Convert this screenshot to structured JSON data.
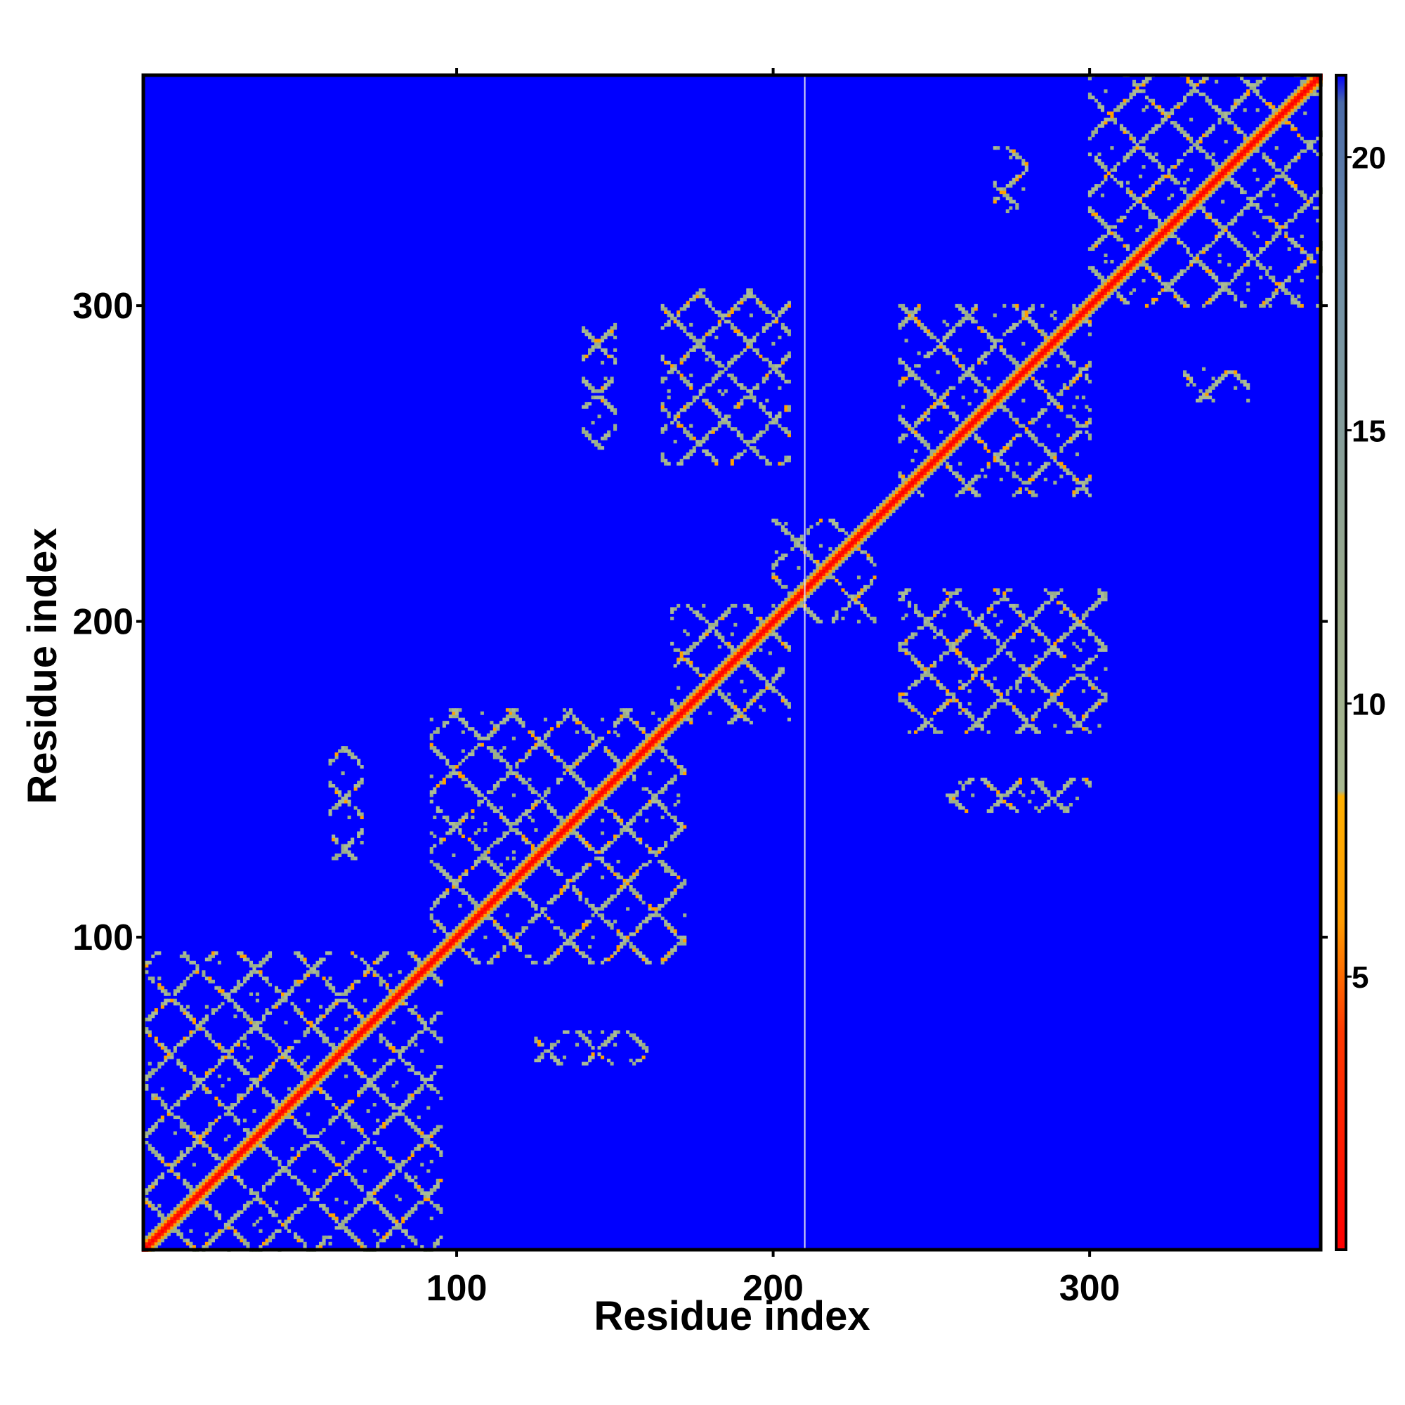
{
  "chart_data": {
    "type": "heatmap",
    "title": "",
    "xlabel": "Residue index",
    "ylabel": "Residue index",
    "xlim": [
      1,
      373
    ],
    "ylim": [
      1,
      373
    ],
    "x_ticks": [
      100,
      200,
      300
    ],
    "y_ticks": [
      100,
      200,
      300
    ],
    "colorbar": {
      "range": [
        0,
        21.5
      ],
      "ticks": [
        5,
        10,
        15,
        20
      ],
      "colors": [
        {
          "value": 0,
          "color": "#ff0000"
        },
        {
          "value": 4,
          "color": "#ff3a00"
        },
        {
          "value": 6,
          "color": "#ff9b00"
        },
        {
          "value": 8.3,
          "color": "#ffb000"
        },
        {
          "value": 8.4,
          "color": "#a8b890"
        },
        {
          "value": 12,
          "color": "#9aaa8c"
        },
        {
          "value": 18,
          "color": "#6f8fa8"
        },
        {
          "value": 21,
          "color": "#4a6aa8"
        },
        {
          "value": 21.5,
          "color": "#0000ff"
        }
      ]
    },
    "background_color": "#0000ff",
    "diagonal_color": "#ff0000",
    "blocks": [
      {
        "x": [
          1,
          95
        ],
        "y": [
          1,
          95
        ]
      },
      {
        "x": [
          92,
          172
        ],
        "y": [
          92,
          172
        ]
      },
      {
        "x": [
          168,
          205
        ],
        "y": [
          168,
          205
        ]
      },
      {
        "x": [
          200,
          232
        ],
        "y": [
          200,
          232
        ]
      },
      {
        "x": [
          240,
          300
        ],
        "y": [
          240,
          300
        ]
      },
      {
        "x": [
          300,
          373
        ],
        "y": [
          300,
          373
        ]
      }
    ],
    "off_diagonal_blocks": [
      {
        "x": [
          165,
          205
        ],
        "y": [
          250,
          305
        ]
      },
      {
        "x": [
          240,
          305
        ],
        "y": [
          165,
          210
        ]
      },
      {
        "x": [
          140,
          150
        ],
        "y": [
          255,
          295
        ]
      },
      {
        "x": [
          255,
          300
        ],
        "y": [
          140,
          150
        ]
      },
      {
        "x": [
          60,
          70
        ],
        "y": [
          125,
          160
        ]
      },
      {
        "x": [
          125,
          160
        ],
        "y": [
          60,
          70
        ]
      },
      {
        "x": [
          270,
          280
        ],
        "y": [
          330,
          350
        ]
      },
      {
        "x": [
          330,
          350
        ],
        "y": [
          270,
          280
        ]
      }
    ]
  }
}
